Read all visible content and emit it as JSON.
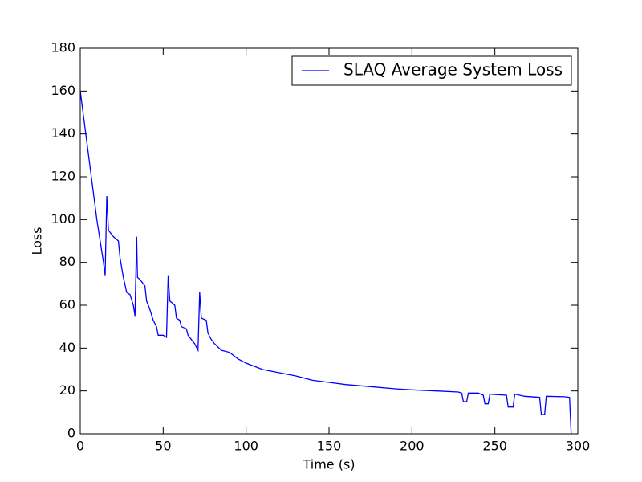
{
  "chart_data": {
    "type": "line",
    "x_label": "Time (s)",
    "y_label": "Loss",
    "x": [
      0,
      5,
      10,
      14,
      15,
      16,
      17,
      20,
      23,
      24,
      26,
      28,
      30,
      32,
      33,
      34,
      34.5,
      36,
      39,
      40,
      42,
      44,
      46,
      47,
      50,
      52,
      53,
      54,
      57,
      58,
      60,
      61,
      64,
      65,
      67,
      69,
      71,
      72,
      73,
      76,
      77,
      79,
      81,
      85,
      90,
      95,
      100,
      110,
      120,
      130,
      140,
      150,
      160,
      175,
      190,
      200,
      215,
      228,
      230,
      231,
      233,
      234,
      240,
      243,
      244,
      246,
      247,
      257,
      258,
      261,
      262,
      268,
      277,
      278,
      280,
      281,
      292,
      295,
      296
    ],
    "series": [
      {
        "name": "SLAQ Average System Loss",
        "color": "#0000ff",
        "values": [
          160,
          130,
          100,
          80,
          74,
          111,
          95,
          92,
          90,
          82,
          73,
          66,
          65,
          60,
          55,
          92,
          73,
          72,
          69,
          62,
          58,
          53,
          50,
          46,
          46,
          45,
          74,
          62,
          60,
          54,
          53,
          50,
          49,
          46,
          44,
          42,
          39,
          66,
          54,
          53,
          47,
          44,
          42,
          39,
          38,
          35,
          33,
          30,
          28.5,
          27,
          25,
          24,
          23,
          22,
          21,
          20.5,
          20,
          19.5,
          19,
          15,
          15,
          19,
          19,
          18,
          14,
          14,
          18.5,
          18,
          12.5,
          12.5,
          18.5,
          17.5,
          17,
          9,
          9,
          17.5,
          17.3,
          17,
          0
        ]
      }
    ],
    "xlim": [
      0,
      300
    ],
    "xticks": [
      0,
      50,
      100,
      150,
      200,
      250,
      300
    ],
    "ylim": [
      0,
      180
    ],
    "yticks": [
      0,
      20,
      40,
      60,
      80,
      100,
      120,
      140,
      160,
      180
    ],
    "legend": "upper right"
  }
}
